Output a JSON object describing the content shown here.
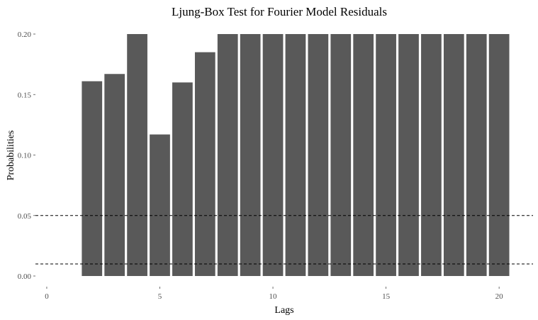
{
  "chart_data": {
    "type": "bar",
    "title": "Ljung-Box Test for Fourier Model Residuals",
    "xlabel": "Lags",
    "ylabel": "Probabilities",
    "x": [
      2,
      3,
      4,
      5,
      6,
      7,
      8,
      9,
      10,
      11,
      12,
      13,
      14,
      15,
      16,
      17,
      18,
      19,
      20
    ],
    "values": [
      0.161,
      0.167,
      0.2,
      0.117,
      0.16,
      0.185,
      0.2,
      0.2,
      0.2,
      0.2,
      0.2,
      0.2,
      0.2,
      0.2,
      0.2,
      0.2,
      0.2,
      0.2,
      0.2
    ],
    "xlim": [
      -0.5,
      21.5
    ],
    "ylim": [
      0,
      0.2
    ],
    "x_ticks": [
      "0",
      "5",
      "10",
      "15",
      "20"
    ],
    "y_ticks": [
      "0.00",
      "0.05",
      "0.10",
      "0.15",
      "0.20"
    ],
    "reference_lines": [
      0.05,
      0.01
    ],
    "grid": false,
    "legend": "none",
    "bar_color": "#595959"
  }
}
